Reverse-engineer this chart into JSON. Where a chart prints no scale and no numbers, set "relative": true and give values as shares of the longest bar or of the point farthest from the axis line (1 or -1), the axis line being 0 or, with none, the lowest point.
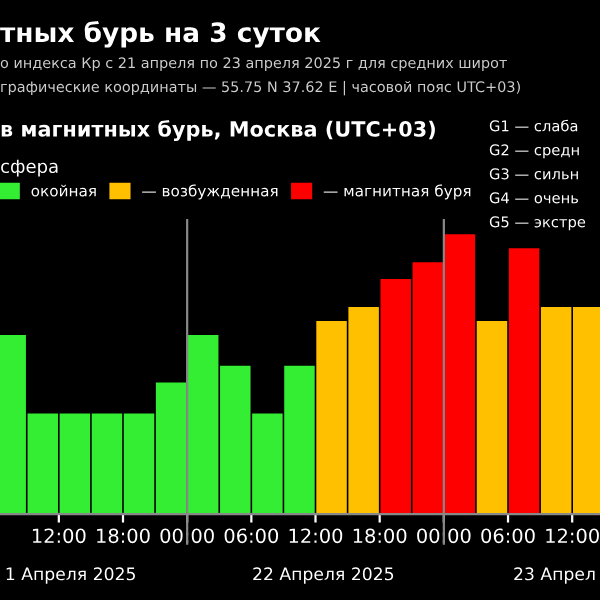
{
  "chart_data": {
    "type": "bar",
    "title": "тных бурь на 3 суток",
    "subtitle": "о индекса Кр с 21 апреля по 23 апреля 2025 г для средних широт\nграфические координаты — 55.75 N 37.62 E | часовой пояс UTC+03)",
    "annotations": [
      "в магнитных бурь, Москва (UTC+03)",
      "G1 — слаба",
      "G2 — средн",
      "G3 — сильн",
      "G4 — очень",
      "G5 — экстре",
      "1 Апреля 2025",
      "22 Апреля 2025",
      "23 Апрел"
    ],
    "legend_title": "сфера",
    "relative": true,
    "x": [
      "2025-04-21T07:30",
      "2025-04-21T10:30",
      "2025-04-21T13:30",
      "2025-04-21T16:30",
      "2025-04-21T19:30",
      "2025-04-21T22:30",
      "2025-04-22T01:30",
      "2025-04-22T04:30",
      "2025-04-22T07:30",
      "2025-04-22T10:30",
      "2025-04-22T13:30",
      "2025-04-22T16:30",
      "2025-04-22T19:30",
      "2025-04-22T22:30",
      "2025-04-23T01:30",
      "2025-04-23T04:30",
      "2025-04-23T07:30",
      "2025-04-23T10:30",
      "2025-04-23T13:30"
    ],
    "series": [
      {
        "name": "окойная",
        "color": "#33ee33",
        "values": [
          0.64,
          0.36,
          0.36,
          0.36,
          0.36,
          0.47,
          0.64,
          0.53,
          0.36,
          0.53,
          null,
          null,
          null,
          null,
          null,
          null,
          null,
          null,
          null
        ]
      },
      {
        "name": "— возбужденная",
        "color": "#ffc000",
        "values": [
          null,
          null,
          null,
          null,
          null,
          null,
          null,
          null,
          null,
          null,
          0.69,
          0.74,
          null,
          null,
          null,
          0.69,
          null,
          0.74,
          0.74
        ]
      },
      {
        "name": "— магнитная буря",
        "color": "#ff0000",
        "values": [
          null,
          null,
          null,
          null,
          null,
          null,
          null,
          null,
          null,
          null,
          null,
          null,
          0.84,
          0.9,
          1,
          null,
          0.95,
          null,
          null
        ]
      }
    ],
    "xlim": [
      "2025-04-21T06:30",
      "2025-04-23T14:36"
    ],
    "xticks": [
      {
        "value": "2025-04-21T12:00",
        "label": "12:00"
      },
      {
        "value": "2025-04-21T18:00",
        "label": "18:00"
      },
      {
        "value": "2025-04-22T00:00",
        "label": "00:00"
      },
      {
        "value": "2025-04-22T06:00",
        "label": "06:00"
      },
      {
        "value": "2025-04-22T12:00",
        "label": "12:00"
      },
      {
        "value": "2025-04-22T18:00",
        "label": "18:00"
      },
      {
        "value": "2025-04-23T00:00",
        "label": "00:00"
      },
      {
        "value": "2025-04-23T06:00",
        "label": "06:00"
      },
      {
        "value": "2025-04-23T12:00",
        "label": "12:00"
      }
    ],
    "ref_lines": [
      {
        "axis": "x",
        "value": "2025-04-22T00:00",
        "color": "#888888"
      },
      {
        "axis": "x",
        "value": "2025-04-23T00:00",
        "color": "#888888"
      }
    ],
    "legend": "top"
  }
}
